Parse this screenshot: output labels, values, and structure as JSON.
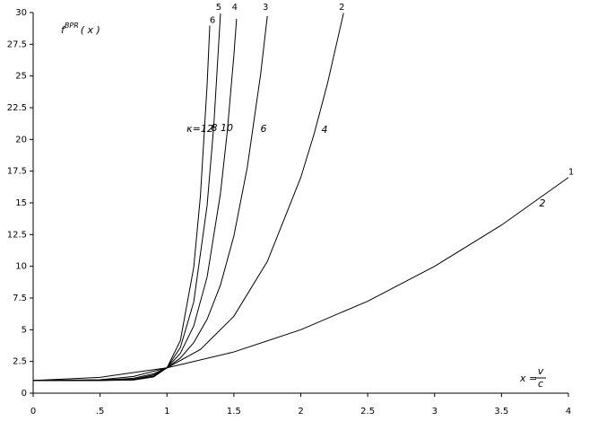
{
  "chart_data": {
    "type": "line",
    "ylabel": {
      "base": "f",
      "sup": "BPR",
      "arg": "( x )"
    },
    "xlabel": {
      "lhs": "x =",
      "num": "v",
      "den": "c"
    },
    "xlim": [
      0,
      4
    ],
    "ylim": [
      0,
      30
    ],
    "xticks": [
      0,
      {
        "value": 0.5,
        "label": ".5"
      },
      1,
      1.5,
      2,
      2.5,
      3,
      3.5,
      4
    ],
    "yticks": [
      0,
      2.5,
      5,
      7.5,
      10,
      12.5,
      15,
      17.5,
      20,
      22.5,
      25,
      27.5,
      30
    ],
    "series": [
      {
        "name": "1",
        "label": "2",
        "color": "#000000",
        "x": [
          0,
          0.5,
          1,
          1.5,
          2,
          2.5,
          3,
          3.5,
          4
        ],
        "values": [
          1,
          1.25,
          2,
          3.25,
          5,
          7.25,
          10,
          13.25,
          17
        ]
      },
      {
        "name": "2",
        "label": "4",
        "color": "#000000",
        "x": [
          0,
          0.5,
          0.75,
          1,
          1.25,
          1.5,
          1.75,
          2,
          2.1,
          2.2,
          2.32
        ],
        "values": [
          1,
          1.0625,
          1.316,
          2,
          3.441,
          6.0625,
          10.379,
          17,
          20.448,
          24.426,
          29.97
        ]
      },
      {
        "name": "3",
        "label": "6",
        "color": "#000000",
        "x": [
          0,
          0.5,
          0.75,
          0.9,
          1,
          1.1,
          1.2,
          1.3,
          1.4,
          1.5,
          1.6,
          1.7,
          1.75
        ],
        "values": [
          1,
          1.016,
          1.178,
          1.531,
          2,
          2.772,
          3.986,
          5.827,
          8.53,
          12.39,
          17.78,
          25.14,
          29.73
        ]
      },
      {
        "name": "4",
        "label": "8",
        "color": "#000000",
        "x": [
          0,
          0.5,
          0.75,
          0.9,
          1,
          1.1,
          1.2,
          1.3,
          1.4,
          1.45,
          1.5,
          1.52
        ],
        "values": [
          1,
          1.004,
          1.1,
          1.43,
          2,
          3.144,
          5.3,
          9.157,
          15.76,
          20.54,
          26.63,
          29.5
        ]
      },
      {
        "name": "5",
        "label": "10",
        "color": "#000000",
        "x": [
          0,
          0.5,
          0.75,
          0.9,
          1,
          1.1,
          1.2,
          1.3,
          1.35,
          1.4
        ],
        "values": [
          1,
          1.001,
          1.056,
          1.349,
          2,
          3.594,
          7.192,
          14.79,
          21.1,
          29.93
        ]
      },
      {
        "name": "6",
        "label": "κ=12",
        "color": "#000000",
        "x": [
          0,
          0.5,
          0.75,
          0.9,
          1,
          1.1,
          1.2,
          1.25,
          1.3,
          1.32
        ],
        "values": [
          1,
          1.0002,
          1.032,
          1.282,
          2,
          4.138,
          9.916,
          15.55,
          24.3,
          28.97
        ]
      }
    ]
  }
}
